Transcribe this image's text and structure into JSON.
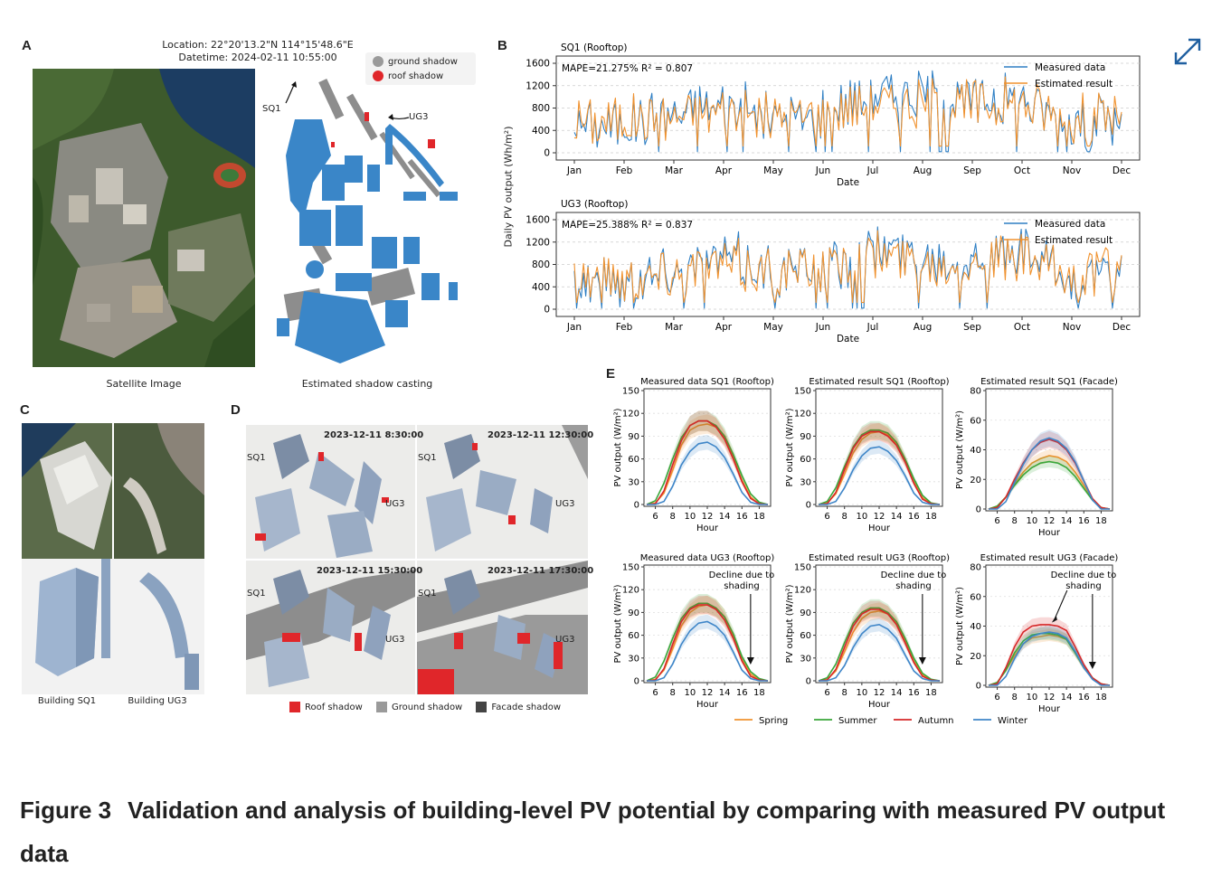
{
  "panelA": {
    "label": "A",
    "location": "Location: 22°20'13.2\"N 114°15'48.6\"E",
    "datetime": "Datetime: 2024-02-11 10:55:00",
    "legend": [
      "ground shadow",
      "roof shadow"
    ],
    "sat_caption": "Satellite Image",
    "shadow_caption": "Estimated shadow casting",
    "callouts": [
      "SQ1",
      "UG3"
    ]
  },
  "panelB": {
    "label": "B",
    "ylabel": "Daily PV output (Wh/m²)",
    "xlabel": "Date",
    "months": [
      "Jan",
      "Feb",
      "Mar",
      "Apr",
      "May",
      "Jun",
      "Jul",
      "Aug",
      "Sep",
      "Oct",
      "Nov",
      "Dec"
    ],
    "yticks": [
      "1600",
      "1200",
      "800",
      "400",
      "0"
    ],
    "legend": [
      "Measured data",
      "Estimated result"
    ],
    "plots": [
      {
        "title": "SQ1 (Rooftop)",
        "metric": "MAPE=21.275% R² = 0.807"
      },
      {
        "title": "UG3 (Rooftop)",
        "metric": "MAPE=25.388% R² = 0.837"
      }
    ]
  },
  "panelC": {
    "label": "C",
    "captions": [
      "Building SQ1",
      "Building UG3"
    ]
  },
  "panelD": {
    "label": "D",
    "times": [
      "2023-12-11 8:30:00",
      "2023-12-11 12:30:00",
      "2023-12-11 15:30:00",
      "2023-12-11 17:30:00"
    ],
    "callouts": [
      "SQ1",
      "UG3"
    ],
    "legend": [
      "Roof shadow",
      "Ground shadow",
      "Facade shadow"
    ]
  },
  "panelE": {
    "label": "E",
    "xlabel": "Hour",
    "ylabel": "PV output (W/m²)",
    "xticks": [
      "6",
      "8",
      "10",
      "12",
      "14",
      "16",
      "18"
    ],
    "yticks_150": [
      "150",
      "120",
      "90",
      "60",
      "30",
      "0"
    ],
    "yticks_80": [
      "80",
      "60",
      "40",
      "20",
      "0"
    ],
    "annotation": "Decline due to shading",
    "titles": [
      "Measured data SQ1 (Rooftop)",
      "Estimated result SQ1 (Rooftop)",
      "Estimated result SQ1 (Facade)",
      "Measured data UG3 (Rooftop)",
      "Estimated result UG3 (Rooftop)",
      "Estimated result UG3 (Facade)"
    ],
    "legend": [
      "Spring",
      "Summer",
      "Autumn",
      "Winter"
    ]
  },
  "caption": {
    "fig": "Figure 3",
    "text": "Validation and analysis of building-level PV potential by comparing with measured PV output data"
  },
  "colors": {
    "measured": "#2e7fc4",
    "estimated": "#f0922f",
    "spring": "#f0922f",
    "summer": "#3aa63a",
    "autumn": "#d62728",
    "winter": "#3f86c8",
    "roof_shadow": "#e0262a",
    "ground_shadow": "#9a9a9a",
    "facade_shadow": "#444444",
    "building": "#3a86c8"
  },
  "icons": {
    "expand": "expand-icon"
  },
  "chart_data": [
    {
      "type": "line",
      "title": "SQ1 (Rooftop)",
      "xlabel": "Date",
      "ylabel": "Daily PV output (Wh/m²)",
      "ylim": [
        0,
        1600
      ],
      "x": [
        "Jan",
        "Feb",
        "Mar",
        "Apr",
        "May",
        "Jun",
        "Jul",
        "Aug",
        "Sep",
        "Oct",
        "Nov",
        "Dec"
      ],
      "series": [
        {
          "name": "Measured data",
          "values": [
            500,
            550,
            700,
            850,
            600,
            700,
            1050,
            1000,
            900,
            1000,
            500,
            600
          ]
        },
        {
          "name": "Estimated result",
          "values": [
            550,
            600,
            650,
            750,
            600,
            700,
            900,
            850,
            850,
            900,
            550,
            700
          ]
        }
      ]
    },
    {
      "type": "line",
      "title": "UG3 (Rooftop)",
      "xlabel": "Date",
      "ylabel": "Daily PV output (Wh/m²)",
      "ylim": [
        0,
        1600
      ],
      "x": [
        "Jan",
        "Feb",
        "Mar",
        "Apr",
        "May",
        "Jun",
        "Jul",
        "Aug",
        "Sep",
        "Oct",
        "Nov",
        "Dec"
      ],
      "series": [
        {
          "name": "Measured data",
          "values": [
            550,
            500,
            700,
            900,
            650,
            700,
            1050,
            950,
            900,
            950,
            500,
            600
          ]
        },
        {
          "name": "Estimated result",
          "values": [
            600,
            550,
            650,
            800,
            650,
            700,
            950,
            850,
            850,
            900,
            550,
            700
          ]
        }
      ]
    },
    {
      "type": "line",
      "title": "Measured data SQ1 (Rooftop)",
      "xlabel": "Hour",
      "ylabel": "PV output (W/m²)",
      "ylim": [
        0,
        150
      ],
      "x": [
        5,
        6,
        7,
        8,
        9,
        10,
        11,
        12,
        13,
        14,
        15,
        16,
        17,
        18,
        19
      ],
      "series": [
        {
          "name": "Spring",
          "values": [
            0,
            2,
            15,
            45,
            78,
            98,
            104,
            106,
            102,
            88,
            62,
            32,
            10,
            1,
            0
          ]
        },
        {
          "name": "Summer",
          "values": [
            0,
            5,
            28,
            60,
            88,
            104,
            110,
            110,
            104,
            90,
            66,
            38,
            14,
            3,
            0
          ]
        },
        {
          "name": "Autumn",
          "values": [
            0,
            1,
            18,
            52,
            84,
            104,
            110,
            110,
            102,
            86,
            60,
            30,
            8,
            1,
            0
          ]
        },
        {
          "name": "Winter",
          "values": [
            0,
            0,
            4,
            24,
            52,
            70,
            80,
            82,
            76,
            62,
            40,
            16,
            3,
            0,
            0
          ]
        }
      ]
    },
    {
      "type": "line",
      "title": "Estimated result SQ1 (Rooftop)",
      "xlabel": "Hour",
      "ylabel": "PV output (W/m²)",
      "ylim": [
        0,
        150
      ],
      "x": [
        5,
        6,
        7,
        8,
        9,
        10,
        11,
        12,
        13,
        14,
        15,
        16,
        17,
        18,
        19
      ],
      "series": [
        {
          "name": "Spring",
          "values": [
            0,
            2,
            14,
            40,
            68,
            86,
            94,
            96,
            92,
            80,
            58,
            30,
            9,
            1,
            0
          ]
        },
        {
          "name": "Summer",
          "values": [
            0,
            4,
            22,
            50,
            76,
            92,
            98,
            98,
            94,
            82,
            60,
            34,
            12,
            2,
            0
          ]
        },
        {
          "name": "Autumn",
          "values": [
            0,
            1,
            16,
            46,
            74,
            90,
            96,
            96,
            90,
            78,
            56,
            28,
            7,
            1,
            0
          ]
        },
        {
          "name": "Winter",
          "values": [
            0,
            0,
            4,
            22,
            46,
            64,
            74,
            76,
            70,
            58,
            38,
            15,
            3,
            0,
            0
          ]
        }
      ]
    },
    {
      "type": "line",
      "title": "Estimated result SQ1 (Facade)",
      "xlabel": "Hour",
      "ylabel": "PV output (W/m²)",
      "ylim": [
        0,
        80
      ],
      "x": [
        5,
        6,
        7,
        8,
        9,
        10,
        11,
        12,
        13,
        14,
        15,
        16,
        17,
        18,
        19
      ],
      "series": [
        {
          "name": "Spring",
          "values": [
            0,
            2,
            8,
            17,
            25,
            31,
            34,
            36,
            35,
            32,
            25,
            16,
            7,
            1,
            0
          ]
        },
        {
          "name": "Summer",
          "values": [
            0,
            2,
            8,
            16,
            23,
            28,
            31,
            32,
            31,
            28,
            22,
            14,
            6,
            1,
            0
          ]
        },
        {
          "name": "Autumn",
          "values": [
            0,
            1,
            8,
            20,
            31,
            40,
            45,
            47,
            45,
            40,
            31,
            19,
            7,
            1,
            0
          ]
        },
        {
          "name": "Winter",
          "values": [
            0,
            0,
            5,
            18,
            30,
            40,
            46,
            48,
            46,
            41,
            32,
            19,
            6,
            0,
            0
          ]
        }
      ]
    },
    {
      "type": "line",
      "title": "Measured data UG3 (Rooftop)",
      "xlabel": "Hour",
      "ylabel": "PV output (W/m²)",
      "ylim": [
        0,
        150
      ],
      "x": [
        5,
        6,
        7,
        8,
        9,
        10,
        11,
        12,
        13,
        14,
        15,
        16,
        17,
        18,
        19
      ],
      "series": [
        {
          "name": "Spring",
          "values": [
            0,
            2,
            14,
            42,
            72,
            90,
            98,
            100,
            96,
            84,
            58,
            28,
            9,
            1,
            0
          ]
        },
        {
          "name": "Summer",
          "values": [
            0,
            5,
            26,
            56,
            82,
            96,
            102,
            102,
            96,
            84,
            62,
            32,
            12,
            3,
            0
          ]
        },
        {
          "name": "Autumn",
          "values": [
            0,
            1,
            16,
            48,
            78,
            94,
            100,
            100,
            94,
            80,
            56,
            26,
            6,
            1,
            0
          ]
        },
        {
          "name": "Winter",
          "values": [
            0,
            0,
            4,
            22,
            48,
            66,
            76,
            78,
            72,
            60,
            38,
            14,
            3,
            0,
            0
          ]
        }
      ]
    },
    {
      "type": "line",
      "title": "Estimated result UG3 (Rooftop)",
      "xlabel": "Hour",
      "ylabel": "PV output (W/m²)",
      "ylim": [
        0,
        150
      ],
      "x": [
        5,
        6,
        7,
        8,
        9,
        10,
        11,
        12,
        13,
        14,
        15,
        16,
        17,
        18,
        19
      ],
      "series": [
        {
          "name": "Spring",
          "values": [
            0,
            2,
            13,
            38,
            64,
            82,
            90,
            92,
            88,
            76,
            52,
            26,
            8,
            1,
            0
          ]
        },
        {
          "name": "Summer",
          "values": [
            0,
            4,
            22,
            50,
            76,
            90,
            96,
            96,
            90,
            78,
            56,
            30,
            10,
            2,
            0
          ]
        },
        {
          "name": "Autumn",
          "values": [
            0,
            1,
            15,
            44,
            72,
            88,
            94,
            94,
            88,
            74,
            50,
            24,
            6,
            1,
            0
          ]
        },
        {
          "name": "Winter",
          "values": [
            0,
            0,
            4,
            20,
            44,
            62,
            72,
            74,
            68,
            56,
            34,
            13,
            3,
            0,
            0
          ]
        }
      ]
    },
    {
      "type": "line",
      "title": "Estimated result UG3 (Facade)",
      "xlabel": "Hour",
      "ylabel": "PV output (W/m²)",
      "ylim": [
        0,
        80
      ],
      "x": [
        5,
        6,
        7,
        8,
        9,
        10,
        11,
        12,
        13,
        14,
        15,
        16,
        17,
        18,
        19
      ],
      "series": [
        {
          "name": "Spring",
          "values": [
            0,
            2,
            10,
            20,
            28,
            32,
            33,
            34,
            33,
            31,
            22,
            12,
            5,
            1,
            0
          ]
        },
        {
          "name": "Summer",
          "values": [
            0,
            2,
            10,
            22,
            30,
            34,
            35,
            35,
            34,
            31,
            22,
            12,
            5,
            1,
            0
          ]
        },
        {
          "name": "Autumn",
          "values": [
            0,
            1,
            12,
            26,
            36,
            40,
            41,
            41,
            40,
            37,
            26,
            14,
            5,
            1,
            0
          ]
        },
        {
          "name": "Winter",
          "values": [
            0,
            0,
            6,
            18,
            28,
            33,
            35,
            36,
            35,
            32,
            23,
            12,
            4,
            0,
            0
          ]
        }
      ]
    }
  ]
}
